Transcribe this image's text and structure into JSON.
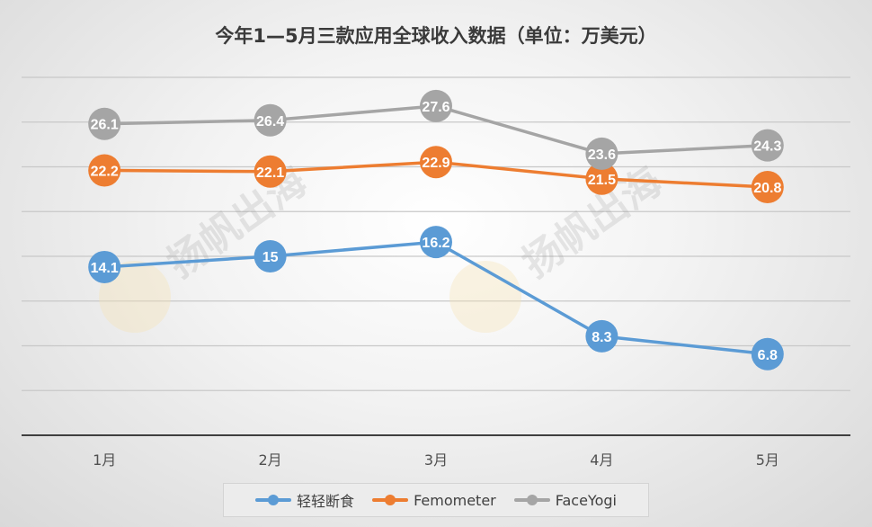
{
  "chart_data": {
    "type": "line",
    "title": "今年1—5月三款应用全球收入数据（单位：万美元）",
    "categories": [
      "1月",
      "2月",
      "3月",
      "4月",
      "5月"
    ],
    "ylim": [
      0,
      30
    ],
    "grid": true,
    "legend_position": "bottom",
    "series": [
      {
        "name": "轻轻断食",
        "color": "#5b9bd5",
        "values": [
          14.1,
          15,
          16.2,
          8.3,
          6.8
        ]
      },
      {
        "name": "Femometer",
        "color": "#ed7d31",
        "values": [
          22.2,
          22.1,
          22.9,
          21.5,
          20.8
        ]
      },
      {
        "name": "FaceYogi",
        "color": "#a5a5a5",
        "values": [
          26.1,
          26.4,
          27.6,
          23.6,
          24.3
        ]
      }
    ]
  },
  "watermark": "扬帆出海"
}
